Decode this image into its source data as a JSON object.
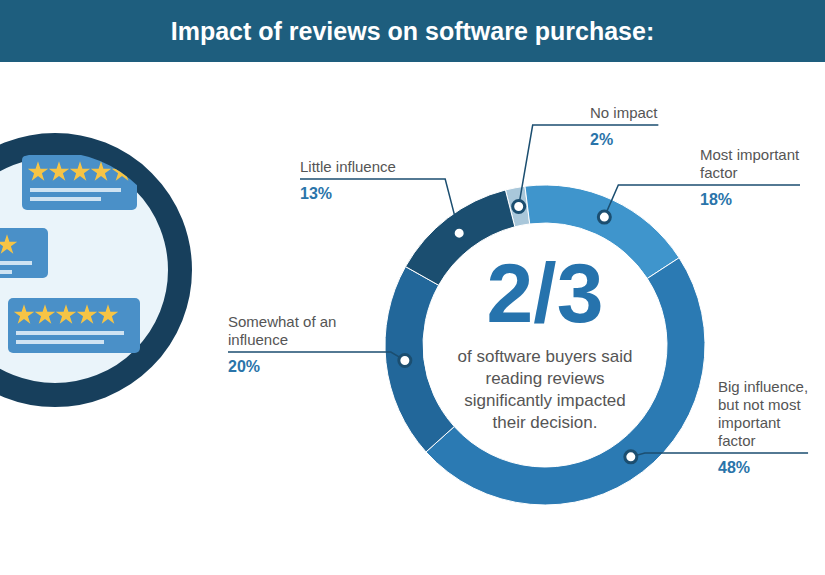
{
  "chart_data": {
    "type": "donut",
    "title": "Impact of reviews on software purchase:",
    "categories": [
      "No impact",
      "Most important factor",
      "Big influence, but not most important factor",
      "Somewhat of an influence",
      "Little influence"
    ],
    "values": [
      2,
      18,
      48,
      20,
      13
    ],
    "value_labels": [
      "2%",
      "18%",
      "48%",
      "20%",
      "13%"
    ],
    "colors": [
      "#a9c7da",
      "#3f95cc",
      "#2b7ab3",
      "#22679a",
      "#1b4e70"
    ],
    "data_labels": true,
    "center_text": "2/3",
    "center_caption": "of software buyers said reading reviews significantly impacted their decision."
  }
}
